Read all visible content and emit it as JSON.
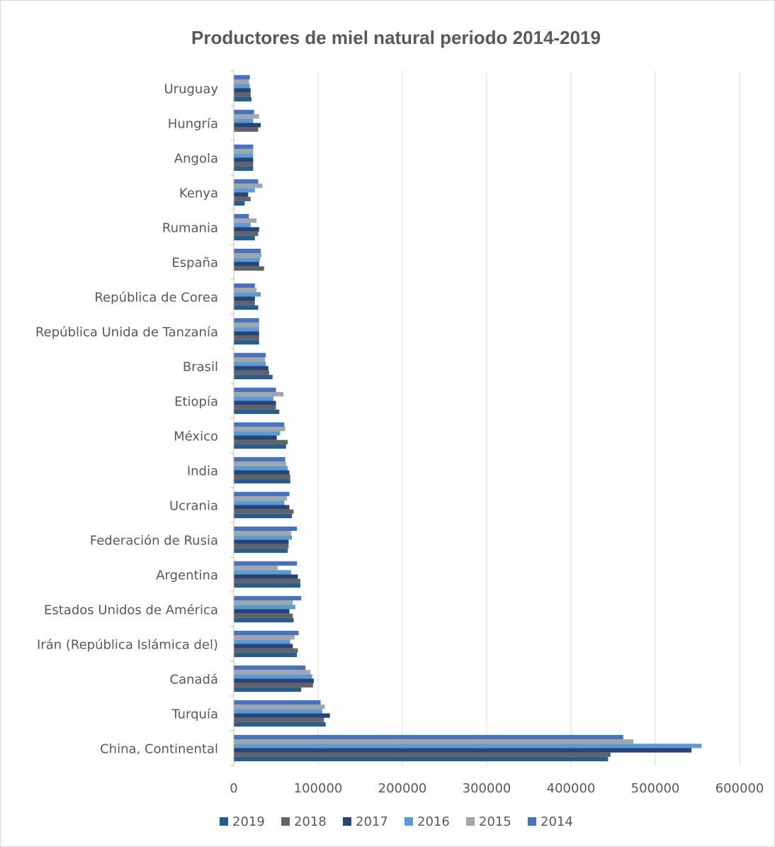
{
  "chart_data": {
    "type": "bar",
    "orientation": "horizontal",
    "title": "Productores de miel natural periodo 2014-2019",
    "xlabel": "",
    "ylabel": "",
    "xlim": [
      0,
      600000
    ],
    "x_ticks": [
      0,
      100000,
      200000,
      300000,
      400000,
      500000,
      600000
    ],
    "grid": "vertical",
    "legend_position": "bottom",
    "categories": [
      "China, Continental",
      "Turquía",
      "Canadá",
      "Irán (República Islámica del)",
      "Estados Unidos de América",
      "Argentina",
      "Federación de Rusia",
      "Ucrania",
      "India",
      "México",
      "Etiopía",
      "Brasil",
      "República Unida de Tanzanía",
      "República de Corea",
      "España",
      "Rumania",
      "Kenya",
      "Angola",
      "Hungría",
      "Uruguay"
    ],
    "series": [
      {
        "name": "2019",
        "color": "#255e91",
        "values": [
          444000,
          109000,
          80000,
          75000,
          71000,
          79000,
          64000,
          69000,
          67000,
          62000,
          54000,
          46000,
          30000,
          29000,
          0,
          25000,
          13000,
          23000,
          0,
          21000
        ]
      },
      {
        "name": "2018",
        "color": "#636363",
        "values": [
          447000,
          107000,
          94000,
          76000,
          70000,
          79000,
          65000,
          71000,
          67000,
          64000,
          50000,
          42000,
          30000,
          25000,
          36000,
          29000,
          20000,
          23000,
          29000,
          20000
        ]
      },
      {
        "name": "2017",
        "color": "#264478",
        "values": [
          543000,
          114000,
          95000,
          70000,
          66000,
          76000,
          65000,
          66000,
          66000,
          51000,
          50000,
          41000,
          30000,
          25000,
          30000,
          30000,
          17000,
          23000,
          32000,
          20000
        ]
      },
      {
        "name": "2016",
        "color": "#5b9bd5",
        "values": [
          555000,
          105000,
          93000,
          67000,
          73000,
          68000,
          69000,
          60000,
          64000,
          55000,
          47000,
          38000,
          30000,
          32000,
          31000,
          20000,
          25000,
          23000,
          23000,
          19000
        ]
      },
      {
        "name": "2015",
        "color": "#a5a5a5",
        "values": [
          474000,
          108000,
          91000,
          72000,
          70000,
          52000,
          68000,
          63000,
          62000,
          61000,
          59000,
          37000,
          30000,
          27000,
          33000,
          27000,
          34000,
          23000,
          30000,
          18000
        ]
      },
      {
        "name": "2014",
        "color": "#4472c4",
        "values": [
          462000,
          103000,
          85000,
          77000,
          80000,
          75000,
          75000,
          66000,
          61000,
          60000,
          50000,
          38000,
          30000,
          25000,
          32000,
          18000,
          29000,
          23000,
          24000,
          19000
        ]
      }
    ]
  }
}
